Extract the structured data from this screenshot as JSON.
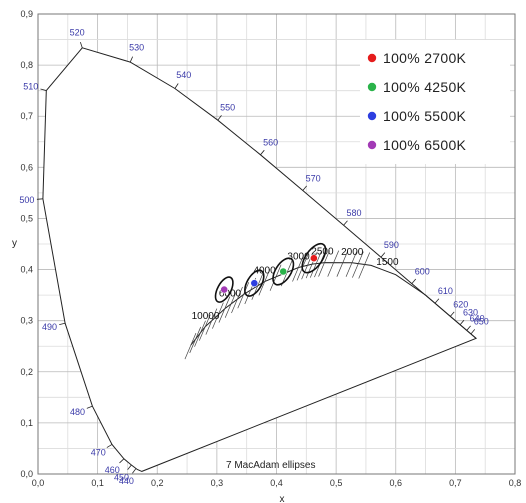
{
  "chart_data": {
    "type": "scatter",
    "title": "",
    "xlabel": "x",
    "ylabel": "y",
    "xlim": [
      0,
      0.8
    ],
    "ylim": [
      0,
      0.9
    ],
    "grid": true,
    "legend_position": "top-right",
    "x_ticks": [
      "0,0",
      "0,1",
      "0,2",
      "0,3",
      "0,4",
      "0,5",
      "0,6",
      "0,7",
      "0,8"
    ],
    "y_ticks": [
      "0,0",
      "0,1",
      "0,2",
      "0,3",
      "0,4",
      "0,5",
      "0,6",
      "0,7",
      "0,8",
      "0,9"
    ],
    "x_tick_values": [
      0,
      0.1,
      0.2,
      0.3,
      0.4,
      0.5,
      0.6,
      0.7,
      0.8
    ],
    "y_tick_values": [
      0,
      0.1,
      0.2,
      0.3,
      0.4,
      0.5,
      0.6,
      0.7,
      0.8,
      0.9
    ],
    "spectral_locus": [
      [
        0.1741,
        0.005
      ],
      [
        0.1666,
        0.0089
      ],
      [
        0.1566,
        0.0177
      ],
      [
        0.144,
        0.0297
      ],
      [
        0.1241,
        0.0578
      ],
      [
        0.0913,
        0.1327
      ],
      [
        0.0454,
        0.295
      ],
      [
        0.0082,
        0.5384
      ],
      [
        0.0139,
        0.7502
      ],
      [
        0.0743,
        0.8338
      ],
      [
        0.1547,
        0.8059
      ],
      [
        0.2296,
        0.7543
      ],
      [
        0.3016,
        0.6923
      ],
      [
        0.3731,
        0.6245
      ],
      [
        0.4441,
        0.5547
      ],
      [
        0.5125,
        0.4866
      ],
      [
        0.5752,
        0.4242
      ],
      [
        0.627,
        0.3725
      ],
      [
        0.6658,
        0.334
      ],
      [
        0.6915,
        0.3083
      ],
      [
        0.7079,
        0.292
      ],
      [
        0.7347,
        0.2653
      ]
    ],
    "wavelength_labels": [
      {
        "label": "440",
        "x": 0.1644,
        "y": 0.0109
      },
      {
        "label": "450",
        "x": 0.1566,
        "y": 0.0177
      },
      {
        "label": "460",
        "x": 0.144,
        "y": 0.0297
      },
      {
        "label": "470",
        "x": 0.1241,
        "y": 0.0578
      },
      {
        "label": "480",
        "x": 0.0913,
        "y": 0.1327
      },
      {
        "label": "490",
        "x": 0.0454,
        "y": 0.295
      },
      {
        "label": "500",
        "x": 0.0082,
        "y": 0.5384
      },
      {
        "label": "510",
        "x": 0.0139,
        "y": 0.7502
      },
      {
        "label": "520",
        "x": 0.0743,
        "y": 0.8338
      },
      {
        "label": "530",
        "x": 0.1547,
        "y": 0.8059
      },
      {
        "label": "540",
        "x": 0.2296,
        "y": 0.7543
      },
      {
        "label": "550",
        "x": 0.3016,
        "y": 0.6923
      },
      {
        "label": "560",
        "x": 0.3731,
        "y": 0.6245
      },
      {
        "label": "570",
        "x": 0.4441,
        "y": 0.5547
      },
      {
        "label": "580",
        "x": 0.5125,
        "y": 0.4866
      },
      {
        "label": "590",
        "x": 0.5752,
        "y": 0.4242
      },
      {
        "label": "600",
        "x": 0.627,
        "y": 0.3725
      },
      {
        "label": "610",
        "x": 0.6658,
        "y": 0.334
      },
      {
        "label": "620",
        "x": 0.6915,
        "y": 0.3083
      },
      {
        "label": "630",
        "x": 0.7079,
        "y": 0.292
      },
      {
        "label": "640",
        "x": 0.719,
        "y": 0.2809
      },
      {
        "label": "650",
        "x": 0.726,
        "y": 0.274
      }
    ],
    "planckian_locus": [
      [
        0.2565,
        0.2522
      ],
      [
        0.2806,
        0.2883
      ],
      [
        0.3135,
        0.3237
      ],
      [
        0.3451,
        0.3516
      ],
      [
        0.3805,
        0.3768
      ],
      [
        0.4369,
        0.4041
      ],
      [
        0.4598,
        0.4106
      ],
      [
        0.4806,
        0.4137
      ],
      [
        0.5267,
        0.4133
      ],
      [
        0.5586,
        0.4081
      ],
      [
        0.6,
        0.39
      ],
      [
        0.65,
        0.35
      ],
      [
        0.7347,
        0.2653
      ]
    ],
    "cct_labels": [
      {
        "label": "10000",
        "x": 0.281,
        "y": 0.288
      },
      {
        "label": "6000",
        "x": 0.322,
        "y": 0.332
      },
      {
        "label": "4000",
        "x": 0.38,
        "y": 0.377
      },
      {
        "label": "3000",
        "x": 0.437,
        "y": 0.404
      },
      {
        "label": "2500",
        "x": 0.477,
        "y": 0.414
      },
      {
        "label": "2000",
        "x": 0.527,
        "y": 0.413
      },
      {
        "label": "1500",
        "x": 0.586,
        "y": 0.393
      }
    ],
    "series": [
      {
        "name": "100% 2700K",
        "x": [
          0.4627
        ],
        "y": [
          0.4222
        ],
        "color": "#e51c1c"
      },
      {
        "name": "100% 4250K",
        "x": [
          0.4113
        ],
        "y": [
          0.3962
        ],
        "color": "#2ab34a"
      },
      {
        "name": "100% 5500K",
        "x": [
          0.3628
        ],
        "y": [
          0.3734
        ],
        "color": "#2d3ee0"
      },
      {
        "name": "100% 6500K",
        "x": [
          0.3123
        ],
        "y": [
          0.3608
        ],
        "color": "#a23ab5"
      }
    ],
    "ellipses": [
      {
        "cx": 0.4627,
        "cy": 0.4222,
        "rx": 0.028,
        "ry": 0.016,
        "angle": 55
      },
      {
        "cx": 0.4113,
        "cy": 0.3962,
        "rx": 0.025,
        "ry": 0.015,
        "angle": 58
      },
      {
        "cx": 0.3628,
        "cy": 0.3734,
        "rx": 0.024,
        "ry": 0.014,
        "angle": 60
      },
      {
        "cx": 0.3123,
        "cy": 0.3608,
        "rx": 0.023,
        "ry": 0.013,
        "angle": 62
      }
    ],
    "annotation": "7  MacAdam ellipses"
  }
}
